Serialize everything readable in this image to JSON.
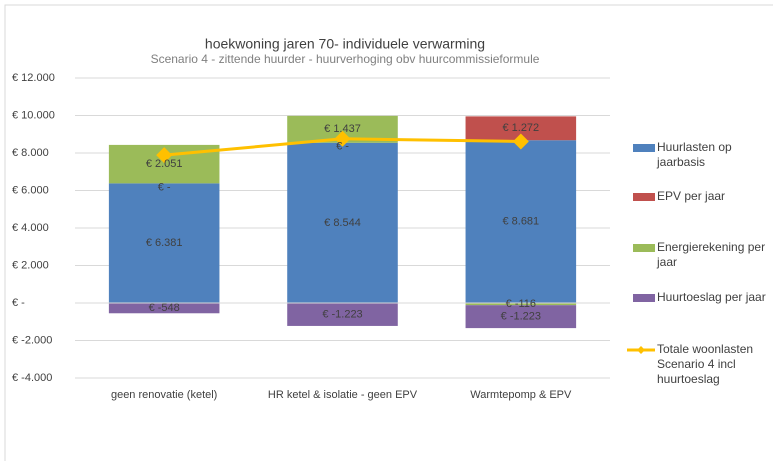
{
  "chart_data": {
    "type": "bar",
    "stacked": true,
    "title": "hoekwoning jaren 70- individuele verwarming",
    "subtitle": "Scenario 4 - zittende huurder - huurverhoging obv huurcommissieformule",
    "categories": [
      "geen renovatie (ketel)",
      "HR ketel & isolatie - geen EPV",
      "Warmtepomp & EPV"
    ],
    "series": [
      {
        "name": "Huurlasten op jaarbasis",
        "color": "#4f81bd",
        "values": [
          6381,
          8544,
          8681
        ],
        "value_labels": [
          "€ 6.381",
          "€ 8.544",
          "€ 8.681"
        ]
      },
      {
        "name": "EPV per jaar",
        "color": "#c0504d",
        "values": [
          0,
          0,
          1272
        ],
        "value_labels": [
          "€ -",
          "€ -",
          "€ 1.272"
        ]
      },
      {
        "name": "Energierekening per jaar",
        "color": "#9bbb59",
        "values": [
          2051,
          1437,
          -116
        ],
        "value_labels": [
          "€ 2.051",
          "€ 1.437",
          "€ -116"
        ]
      },
      {
        "name": "Huurtoeslag per jaar",
        "color": "#8064a2",
        "values": [
          -548,
          -1223,
          -1223
        ],
        "value_labels": [
          "€ -548",
          "€ -1.223",
          "€ -1.223"
        ]
      },
      {
        "name": "Totale woonlasten Scenario 4 incl huurtoeslag",
        "color": "#ffc000",
        "type": "line",
        "values": [
          7884,
          8758,
          8614
        ]
      }
    ],
    "ylim": [
      -4000,
      12000
    ],
    "yticks": [
      {
        "value": -4000,
        "label": "€ -4.000"
      },
      {
        "value": -2000,
        "label": "€ -2.000"
      },
      {
        "value": 0,
        "label": "€ -"
      },
      {
        "value": 2000,
        "label": "€ 2.000"
      },
      {
        "value": 4000,
        "label": "€ 4.000"
      },
      {
        "value": 6000,
        "label": "€ 6.000"
      },
      {
        "value": 8000,
        "label": "€ 8.000"
      },
      {
        "value": 10000,
        "label": "€ 10.000"
      },
      {
        "value": 12000,
        "label": "€ 12.000"
      }
    ],
    "grid": true,
    "legend": "right"
  }
}
